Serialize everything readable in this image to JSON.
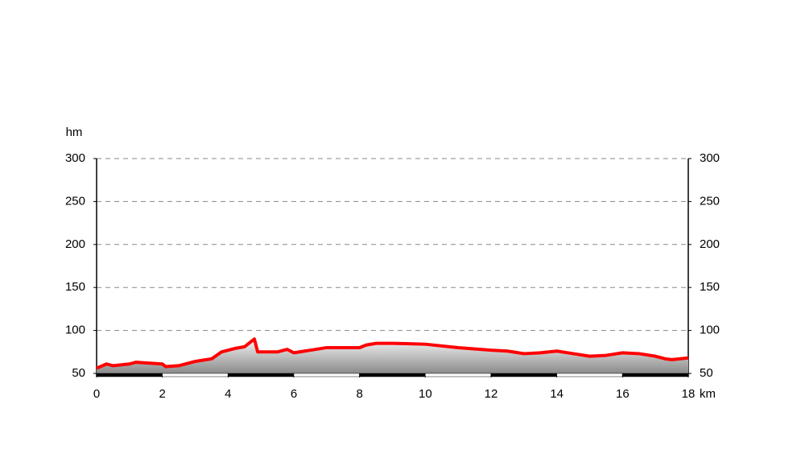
{
  "chart_data": {
    "type": "area",
    "y_label": "hm",
    "x_label": "km",
    "x": [
      0,
      0.3,
      0.5,
      1.0,
      1.2,
      2.0,
      2.1,
      2.5,
      3.0,
      3.5,
      3.8,
      4.2,
      4.5,
      4.7,
      4.8,
      4.9,
      5.5,
      5.8,
      6.0,
      6.5,
      7.0,
      8.0,
      8.2,
      8.5,
      9.0,
      10.0,
      11.0,
      12.0,
      12.5,
      13.0,
      13.5,
      14.0,
      14.5,
      15.0,
      15.5,
      16.0,
      16.5,
      17.0,
      17.3,
      17.5,
      18.0
    ],
    "values": [
      56,
      61,
      59,
      61,
      63,
      61,
      58,
      59,
      64,
      67,
      75,
      79,
      81,
      87,
      90,
      75,
      75,
      78,
      74,
      77,
      80,
      80,
      83,
      85,
      85,
      84,
      80,
      77,
      76,
      73,
      74,
      76,
      73,
      70,
      71,
      74,
      73,
      70,
      67,
      66,
      68
    ],
    "color": "#ff0000",
    "xlim": [
      0,
      18
    ],
    "xticks": [
      0,
      2,
      4,
      6,
      8,
      10,
      12,
      14,
      16,
      18
    ],
    "ylim": [
      50,
      300
    ],
    "yticks": [
      50,
      100,
      150,
      200,
      250,
      300
    ],
    "grid": true
  }
}
